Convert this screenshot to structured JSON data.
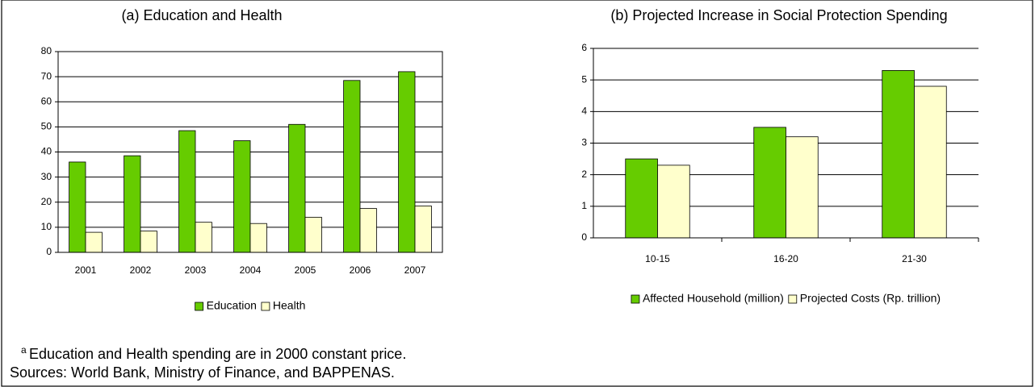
{
  "chart_data": [
    {
      "type": "bar",
      "title": "(a) Education and Health",
      "categories": [
        "2001",
        "2002",
        "2003",
        "2004",
        "2005",
        "2006",
        "2007"
      ],
      "series": [
        {
          "name": "Education",
          "color": "#66cc00",
          "values": [
            36,
            38.5,
            48.5,
            44.5,
            51,
            68.5,
            72
          ]
        },
        {
          "name": "Health",
          "color": "#ffffcc",
          "values": [
            8,
            8.5,
            12,
            11.5,
            14,
            17.5,
            18.5
          ]
        }
      ],
      "ylim": [
        0,
        80
      ],
      "yticks": [
        0,
        10,
        20,
        30,
        40,
        50,
        60,
        70,
        80
      ],
      "grid": true,
      "legend": "bottom"
    },
    {
      "type": "bar",
      "title": "(b) Projected Increase in Social Protection Spending",
      "categories": [
        "10-15",
        "16-20",
        "21-30"
      ],
      "series": [
        {
          "name": "Affected Household (million)",
          "color": "#66cc00",
          "values": [
            2.5,
            3.5,
            5.3
          ]
        },
        {
          "name": "Projected Costs (Rp. trillion)",
          "color": "#ffffcc",
          "values": [
            2.3,
            3.2,
            4.8
          ]
        }
      ],
      "ylim": [
        0,
        6
      ],
      "yticks": [
        0,
        1,
        2,
        3,
        4,
        5,
        6
      ],
      "grid": true,
      "legend": "bottom"
    }
  ],
  "footnote": {
    "marker": "a",
    "lines": [
      "Education and Health spending are in 2000 constant price.",
      "Sources: World Bank, Ministry of Finance, and BAPPENAS."
    ]
  }
}
